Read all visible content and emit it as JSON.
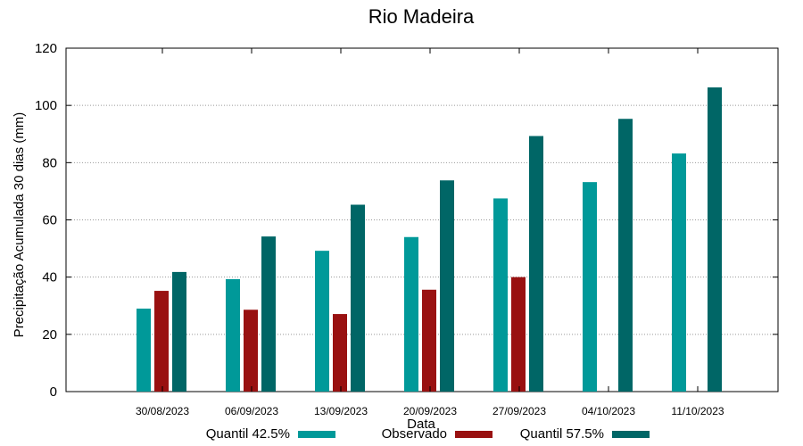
{
  "chart_data": {
    "type": "bar",
    "title": "Rio Madeira",
    "xlabel": "Data",
    "ylabel": "Precipitação Acumulada 30 dias (mm)",
    "ylim": [
      0,
      120
    ],
    "yticks": [
      0,
      20,
      40,
      60,
      80,
      100,
      120
    ],
    "grid": true,
    "legend_position": "bottom",
    "categories": [
      "30/08/2023",
      "06/09/2023",
      "13/09/2023",
      "20/09/2023",
      "27/09/2023",
      "04/10/2023",
      "11/10/2023"
    ],
    "series": [
      {
        "name": "Quantil 42.5%",
        "color": "#009999",
        "values": [
          29,
          39.3,
          49.2,
          54,
          67.5,
          73.2,
          83.2
        ]
      },
      {
        "name": "Observado",
        "color": "#991111",
        "values": [
          35.2,
          28.6,
          27.1,
          35.6,
          40,
          null,
          null
        ]
      },
      {
        "name": "Quantil 57.5%",
        "color": "#006666",
        "values": [
          41.8,
          54.2,
          65.3,
          73.8,
          89.3,
          95.3,
          106.3
        ]
      }
    ]
  }
}
